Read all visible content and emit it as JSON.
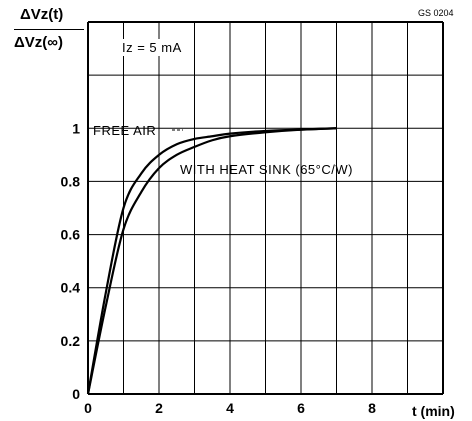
{
  "chart_data": {
    "type": "line",
    "figure_code": "GS 0204",
    "ylabel_numerator": "ΔVz(t)",
    "ylabel_denominator": "ΔVz(∞)",
    "xlabel": "t (min)",
    "condition": "Iz = 5 mA",
    "xlim": [
      0,
      10
    ],
    "ylim": [
      0,
      1.4
    ],
    "x_ticks": [
      "0",
      "2",
      "4",
      "6",
      "8"
    ],
    "y_ticks": [
      "0",
      "0.2",
      "0.4",
      "0.6",
      "0.8",
      "1"
    ],
    "grid": true,
    "series": [
      {
        "name": "FREE AIR",
        "x": [
          0,
          0.5,
          1,
          1.5,
          2,
          2.5,
          3,
          3.5,
          4,
          5,
          6,
          7
        ],
        "y": [
          0,
          0.38,
          0.7,
          0.83,
          0.9,
          0.94,
          0.96,
          0.97,
          0.98,
          0.99,
          0.995,
          1.0
        ]
      },
      {
        "name": "WITH HEAT SINK (65°C/W)",
        "x": [
          0,
          0.5,
          1,
          1.5,
          2,
          2.5,
          3,
          3.5,
          4,
          5,
          6,
          7
        ],
        "y": [
          0,
          0.33,
          0.62,
          0.76,
          0.85,
          0.9,
          0.93,
          0.955,
          0.97,
          0.985,
          0.995,
          1.0
        ]
      }
    ]
  }
}
